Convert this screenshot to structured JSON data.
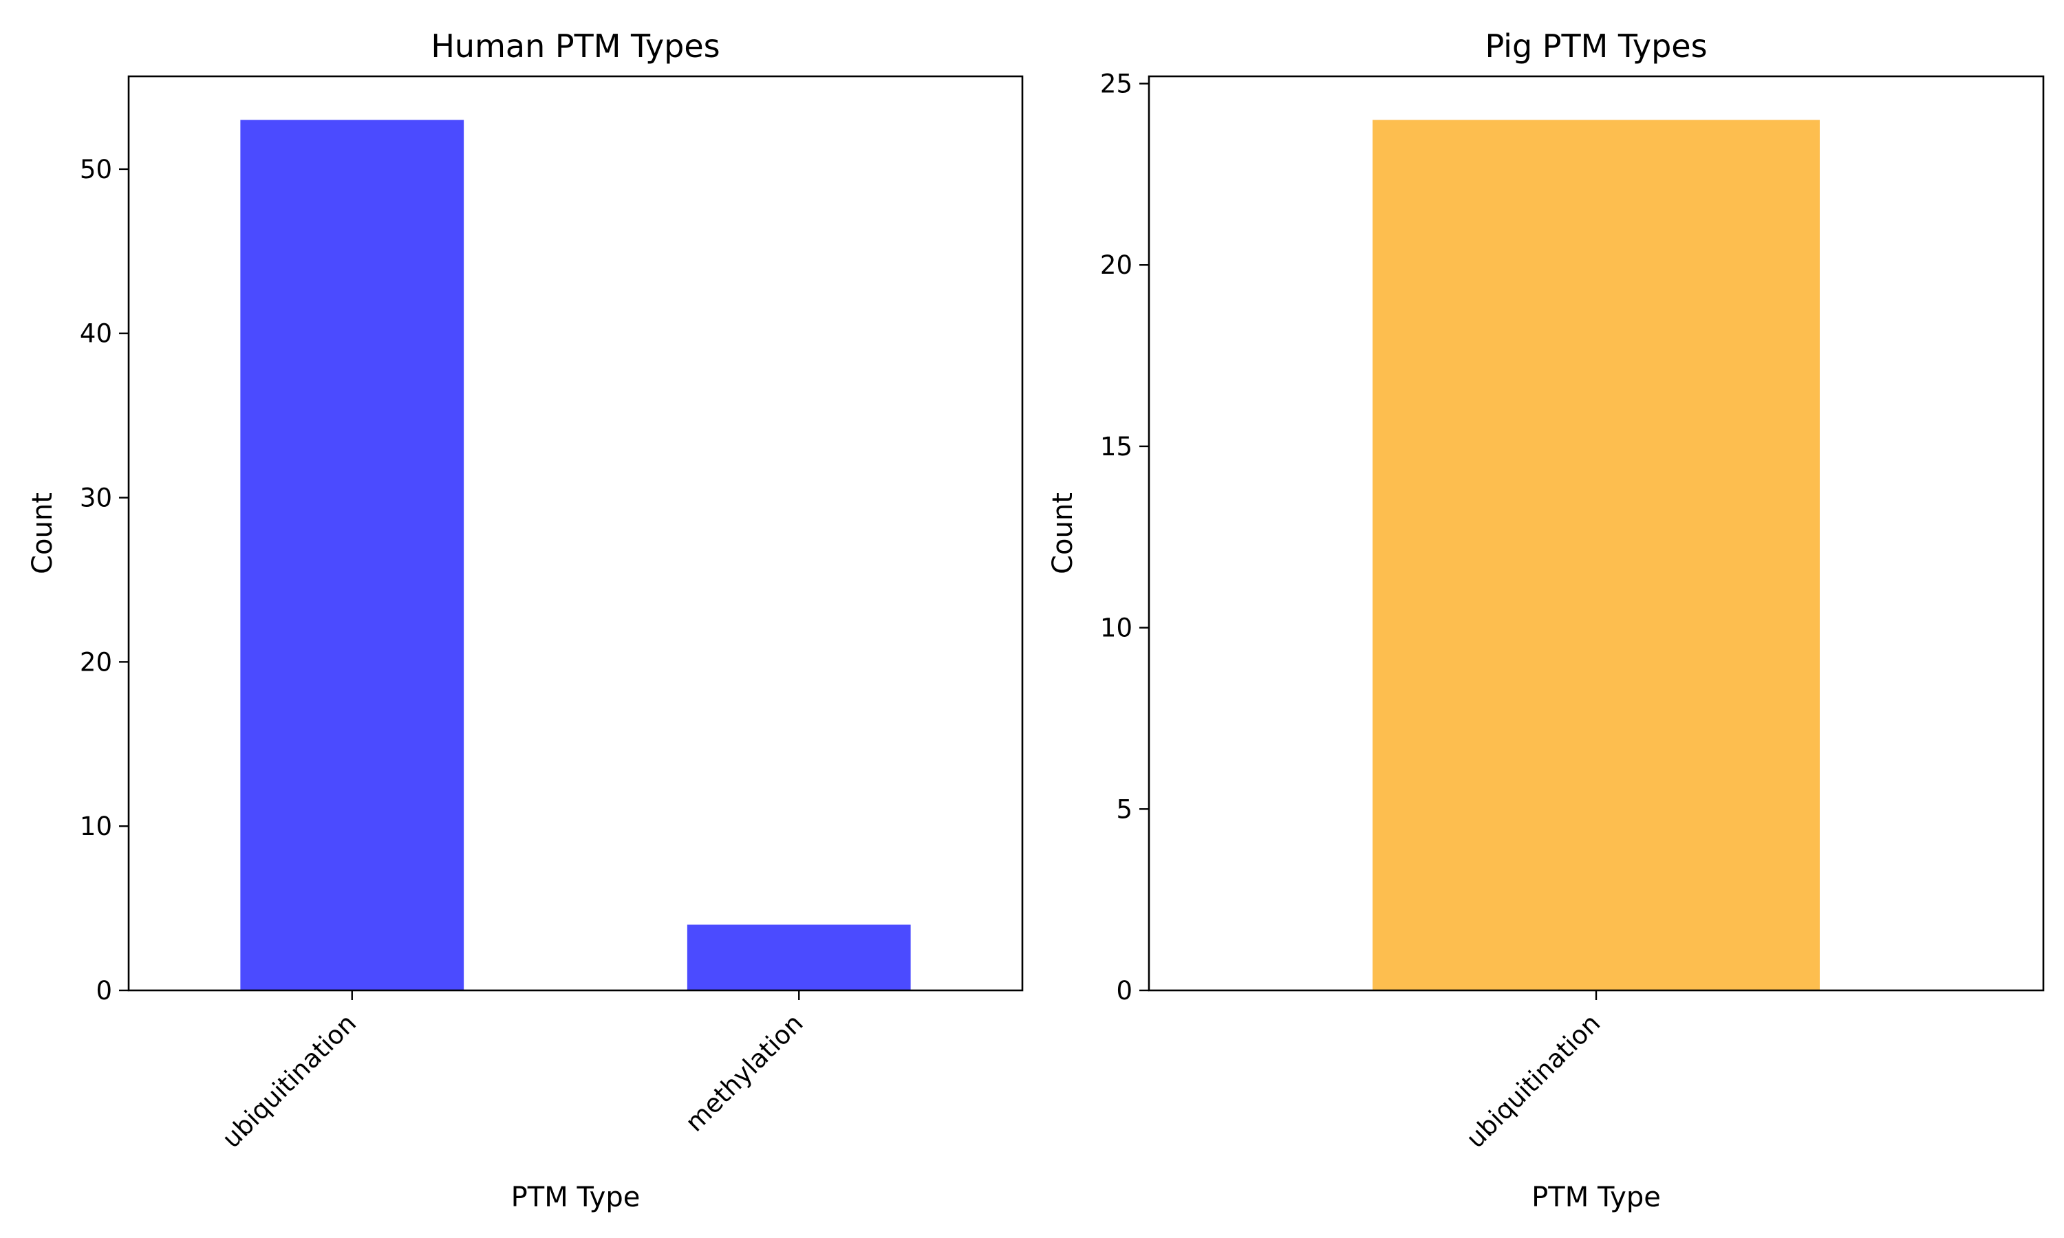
{
  "chart_data": [
    {
      "type": "bar",
      "title": "Human PTM Types",
      "xlabel": "PTM Type",
      "ylabel": "Count",
      "categories": [
        "ubiquitination",
        "methylation"
      ],
      "values": [
        53,
        4
      ],
      "ylim": [
        0,
        55.65
      ],
      "yticks": [
        0,
        10,
        20,
        30,
        40,
        50
      ],
      "color": "#4b4bff",
      "grid": false,
      "legend": "none"
    },
    {
      "type": "bar",
      "title": "Pig PTM Types",
      "xlabel": "PTM Type",
      "ylabel": "Count",
      "categories": [
        "ubiquitination"
      ],
      "values": [
        24
      ],
      "ylim": [
        0,
        25.2
      ],
      "yticks": [
        0,
        5,
        10,
        15,
        20,
        25
      ],
      "color": "#fdbe4f",
      "grid": false,
      "legend": "none"
    }
  ]
}
